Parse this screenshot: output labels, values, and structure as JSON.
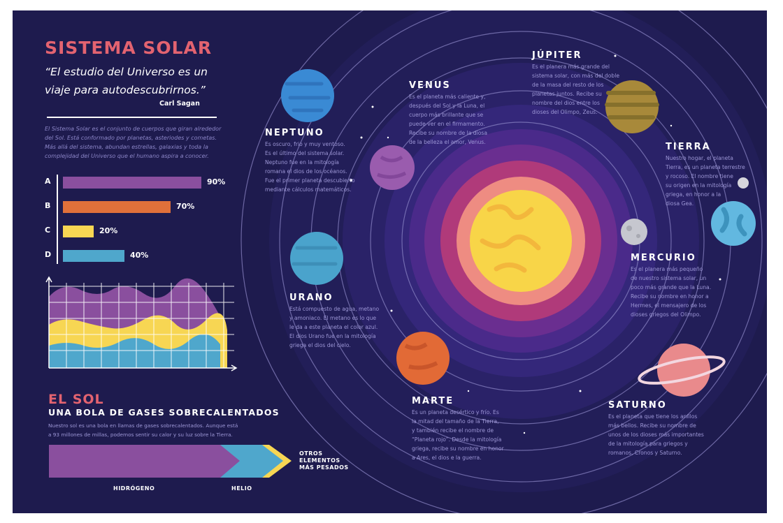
{
  "title": "SISTEMA SOLAR",
  "quote": {
    "line1": "“El estudio del Universo es un",
    "line2": "viaje para autodescubrirnos.”",
    "author": "Carl Sagan"
  },
  "intro": [
    "El Sistema Solar es el conjunto de cuerpos que giran alrededor",
    "del Sol. Está conformado por planetas, asteriodes y cometas.",
    "Más allá del sistema, abundan estrellas, galaxias y toda la",
    "complejidad del Universo que el humano aspira a conocer."
  ],
  "chart_data": {
    "type": "bar",
    "categories": [
      "A",
      "B",
      "C",
      "D"
    ],
    "values": [
      90,
      70,
      20,
      40
    ],
    "value_labels": [
      "90%",
      "70%",
      "20%",
      "40%"
    ],
    "colors": [
      "#8a4f9e",
      "#e0703a",
      "#f7d653",
      "#4fa7cc"
    ],
    "orientation": "horizontal"
  },
  "sun": {
    "title": "EL SOL",
    "subtitle": "UNA BOLA DE GASES SOBRECALENTADOS",
    "desc": [
      "Nuestro sol es una bola en llamas de gases sobrecalentados. Aunque está",
      "a 93 millones de millas, podemos sentir su calor y su luz sobre la Tierra."
    ],
    "composition": {
      "hydrogen": "HIDRÓGENO",
      "helium": "HELIO",
      "other": [
        "OTROS",
        "ELEMENTOS",
        "MÁS PESADOS"
      ]
    }
  },
  "planets": {
    "neptuno": {
      "name": "NEPTUNO",
      "desc": [
        "Es oscuro, frio y muy ventoso.",
        "Es el último del sistema solar.",
        "Neptuno fue en la mitología",
        "romana el dios de los océanos.",
        "Fue el primer planeta descubierto",
        "mediante cálculos matemáticos."
      ]
    },
    "venus": {
      "name": "VENUS",
      "desc": [
        "Es el planeta más caliente y,",
        "después del Sol y la Luna, el",
        "cuerpo más brillante que se",
        "puede ver en el firmamento.",
        "Recibe su nombre de la diosa",
        "de la belleza el amor, Venus."
      ]
    },
    "jupiter": {
      "name": "JÚPITER",
      "desc": [
        "Es el planera más grande del",
        "sistema solar, con más del doble",
        "de la masa del resto de los",
        "planetas juntos. Recibe su",
        "nombre del dios entre los",
        "dioses del Olimpo, Zeus."
      ]
    },
    "tierra": {
      "name": "TIERRA",
      "desc": [
        "Nuestro hogar, el planeta",
        "Tierra, es un planeta terrestre",
        "y rocoso. El nombre tiene",
        "su origen en la mitología",
        "griega, en honor a la",
        "diosa Gea."
      ]
    },
    "mercurio": {
      "name": "MERCURIO",
      "desc": [
        "Es el planera más pequeño",
        "de nuestro sistema solar, un",
        "poco más grande que la Luna.",
        "Recibe su nombre en honor a",
        "Hermes, el mensajero de los",
        "dioses griegos del Olimpo."
      ]
    },
    "urano": {
      "name": "URANO",
      "desc": [
        "Está compuesto de agua, metano",
        "y amoniaco. El metano es lo que",
        "le da a este planeta el color azul.",
        "El dios Urano fue en la mitología",
        "griega el dios del cielo."
      ]
    },
    "marte": {
      "name": "MARTE",
      "desc": [
        "Es un planeta desértico y frío. Es",
        "la mitad del tamaño de la Tierra,",
        "y también recibe el nombre de",
        "“Planeta rojo”.  Desde la mitología",
        "griega, recibe su nombre en honor",
        "a Ares, el dios e la guerra."
      ]
    },
    "saturno": {
      "name": "SATURNO",
      "desc": [
        "Es el planeta que tiene los anillos",
        "más bellos. Recibe su nombre de",
        "unos de los dioses más importantes",
        "de la mitología para griegos y",
        "romanos, Cronos y Saturno."
      ]
    }
  }
}
